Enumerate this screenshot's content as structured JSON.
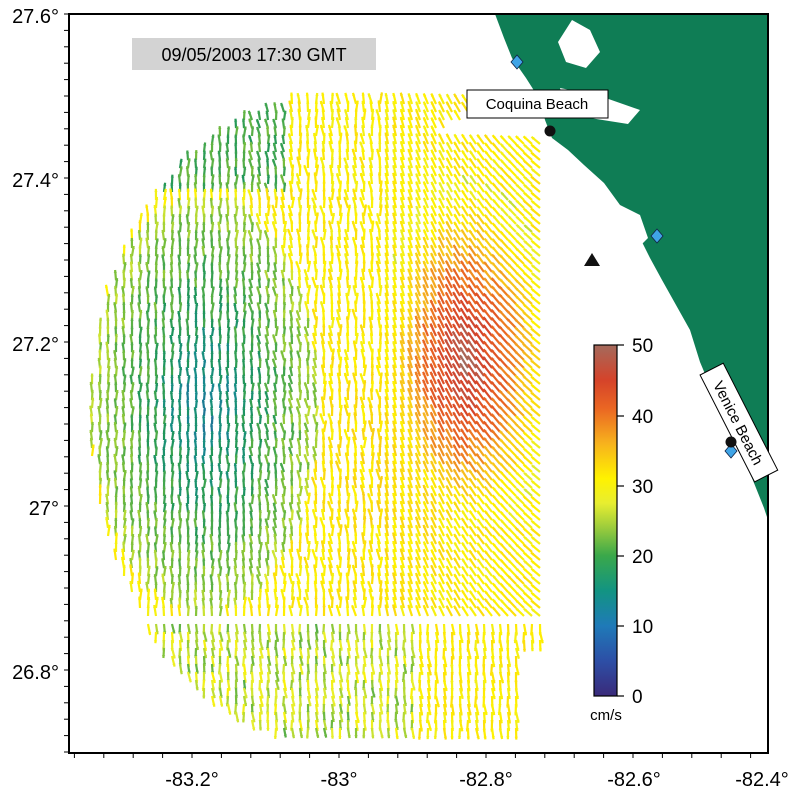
{
  "timestamp": "09/05/2003 17:30 GMT",
  "axes": {
    "x_ticks": [
      "-83.2°",
      "-83°",
      "-82.8°",
      "-82.6°",
      "-82.4°"
    ],
    "y_ticks": [
      "27.6°",
      "27.4°",
      "27.2°",
      "27°",
      "26.8°"
    ],
    "lon_range": [
      -83.35,
      -82.4
    ],
    "lat_range": [
      26.7,
      27.6
    ]
  },
  "places": [
    {
      "name": "Coquina Beach",
      "lon": -82.7,
      "lat": 27.455
    },
    {
      "name": "Venice Beach",
      "lon": -82.452,
      "lat": 27.077
    }
  ],
  "radar_sites": [
    {
      "lon": -82.748,
      "lat": 27.54
    },
    {
      "lon": -82.546,
      "lat": 27.33
    },
    {
      "lon": -82.452,
      "lat": 27.07
    }
  ],
  "buoy": {
    "lon": -82.644,
    "lat": 27.3
  },
  "colorbar": {
    "unit": "cm/s",
    "min": 0,
    "max": 50,
    "ticks": [
      "0",
      "10",
      "20",
      "30",
      "40",
      "50"
    ]
  },
  "colors": {
    "land": "#0f7d55",
    "ocean": "#ffffff"
  }
}
